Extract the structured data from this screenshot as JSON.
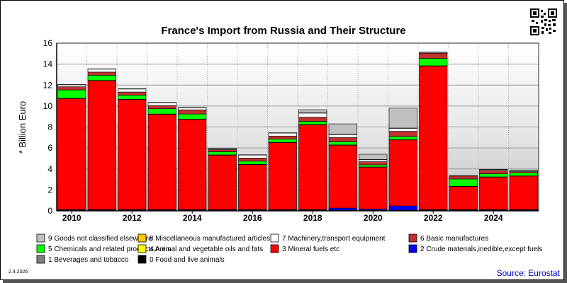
{
  "chart_data": {
    "type": "bar",
    "stacked": true,
    "title": "France's Import from Russia and Their Structure",
    "ylabel": "* Billion Euro",
    "ylim": [
      0,
      16
    ],
    "yticks": [
      0,
      2,
      4,
      6,
      8,
      10,
      12,
      14,
      16
    ],
    "x_tick_labels": [
      "2010",
      "2012",
      "2014",
      "2016",
      "2018",
      "2020",
      "2022",
      "2024"
    ],
    "categories": [
      "2010",
      "2011",
      "2012",
      "2013",
      "2014",
      "2015",
      "2016",
      "2017",
      "2018",
      "2019",
      "2020",
      "2021",
      "2022",
      "2023",
      "2024",
      "2025"
    ],
    "grid": true,
    "legend_position": "bottom",
    "series": [
      {
        "name": "0 Food and live animals",
        "color": "#000000",
        "values": [
          0.05,
          0.05,
          0.05,
          0.05,
          0.05,
          0.05,
          0.05,
          0.05,
          0.05,
          0.05,
          0.05,
          0.05,
          0.05,
          0.05,
          0.05,
          0.05
        ]
      },
      {
        "name": "1 Beverages and tobacco",
        "color": "#808080",
        "values": [
          0.02,
          0.02,
          0.02,
          0.02,
          0.02,
          0.02,
          0.02,
          0.02,
          0.02,
          0.02,
          0.02,
          0.02,
          0.02,
          0.02,
          0.02,
          0.02
        ]
      },
      {
        "name": "2 Crude materials,inedible,except fuels",
        "color": "#0000ff",
        "values": [
          0.05,
          0.05,
          0.05,
          0.05,
          0.05,
          0.05,
          0.05,
          0.05,
          0.05,
          0.2,
          0.1,
          0.4,
          0.05,
          0.05,
          0.05,
          0.05
        ]
      },
      {
        "name": "3 Mineral fuels etc",
        "color": "#ff0000",
        "values": [
          10.6,
          12.3,
          10.5,
          9.1,
          8.6,
          5.2,
          4.3,
          6.4,
          8.1,
          6.0,
          4.0,
          6.3,
          13.7,
          2.2,
          3.1,
          3.2
        ]
      },
      {
        "name": "4 Animal and vegetable oils and fats",
        "color": "#ffff00",
        "values": [
          0.02,
          0.02,
          0.02,
          0.02,
          0.02,
          0.02,
          0.02,
          0.02,
          0.02,
          0.02,
          0.02,
          0.02,
          0.02,
          0.02,
          0.02,
          0.02
        ]
      },
      {
        "name": "5 Chemicals and related products,n.e.s.",
        "color": "#00ff00",
        "values": [
          0.8,
          0.5,
          0.4,
          0.5,
          0.5,
          0.3,
          0.3,
          0.3,
          0.3,
          0.3,
          0.2,
          0.3,
          0.7,
          0.7,
          0.3,
          0.3
        ]
      },
      {
        "name": "6 Basic manufactures",
        "color": "#c03030",
        "values": [
          0.3,
          0.3,
          0.3,
          0.3,
          0.4,
          0.2,
          0.3,
          0.3,
          0.4,
          0.4,
          0.3,
          0.5,
          0.5,
          0.3,
          0.3,
          0.1
        ]
      },
      {
        "name": "7 Machinery,transport equipment",
        "color": "#ffffff",
        "values": [
          0.2,
          0.3,
          0.3,
          0.3,
          0.2,
          0.1,
          0.3,
          0.3,
          0.4,
          0.3,
          0.2,
          0.3,
          0.1,
          0.0,
          0.1,
          0.1
        ]
      },
      {
        "name": "8 Miscellaneous manufactured articles",
        "color": "#ffc800",
        "values": [
          0.01,
          0.01,
          0.01,
          0.01,
          0.01,
          0.01,
          0.01,
          0.01,
          0.01,
          0.01,
          0.01,
          0.01,
          0.01,
          0.01,
          0.01,
          0.01
        ]
      },
      {
        "name": "9 Goods not classified elsewhere",
        "color": "#c0c0c0",
        "values": [
          0.0,
          0.0,
          0.0,
          0.0,
          0.0,
          0.0,
          0.0,
          0.0,
          0.3,
          1.0,
          0.5,
          1.9,
          0.0,
          0.0,
          0.0,
          0.0
        ]
      }
    ],
    "legend_order": [
      9,
      8,
      7,
      6,
      5,
      4,
      3,
      2,
      1,
      0
    ]
  },
  "footer": {
    "date": "2.4.2026",
    "source": "Source: Eurostat"
  },
  "icons": {
    "qr": "qr-code-icon"
  }
}
